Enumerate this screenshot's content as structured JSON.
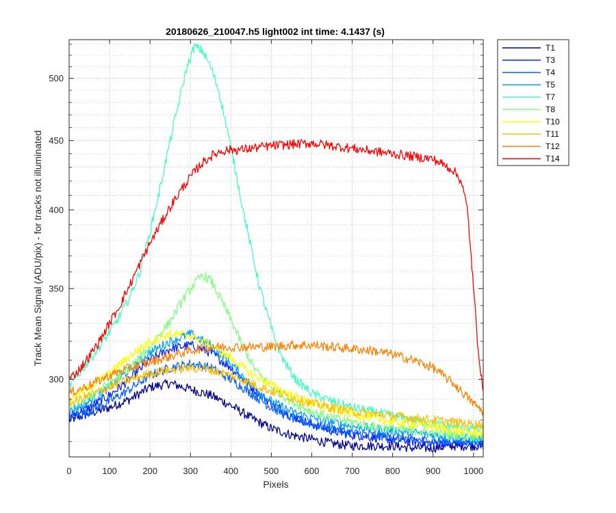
{
  "chart_data": {
    "type": "line",
    "title": "20180626_210047.h5  light002   int time: 4.1437 (s)",
    "xlabel": "Pixels",
    "ylabel": "Track Mean Signal (ADU/pix) - for tracks not illuminated",
    "xlim": [
      0,
      1024
    ],
    "ylim": [
      263,
      534
    ],
    "y_scale": "log",
    "x_ticks": [
      0,
      100,
      200,
      300,
      400,
      500,
      600,
      700,
      800,
      900,
      1000
    ],
    "y_ticks": [
      300,
      350,
      400,
      450,
      500
    ],
    "grid": "major and minor, dotted",
    "legend_position": "outside-right-top",
    "series": [
      {
        "name": "T1",
        "color": "#00008F",
        "x": [
          0,
          50,
          100,
          150,
          200,
          250,
          300,
          350,
          400,
          450,
          500,
          550,
          600,
          650,
          700,
          750,
          800,
          850,
          900,
          950,
          1000,
          1024
        ],
        "y": [
          280,
          283,
          286,
          290,
          296,
          298,
          295,
          292,
          287,
          281,
          276,
          273,
          271,
          269,
          268,
          268,
          268,
          267,
          267,
          268,
          268,
          268
        ]
      },
      {
        "name": "T3",
        "color": "#0020FF",
        "x": [
          0,
          50,
          100,
          150,
          200,
          250,
          300,
          350,
          400,
          450,
          500,
          550,
          600,
          650,
          700,
          750,
          800,
          850,
          900,
          950,
          1000,
          1024
        ],
        "y": [
          282,
          286,
          292,
          300,
          310,
          316,
          318,
          314,
          306,
          296,
          288,
          282,
          278,
          275,
          273,
          272,
          271,
          270,
          269,
          269,
          269,
          269
        ]
      },
      {
        "name": "T4",
        "color": "#0060FF",
        "x": [
          0,
          50,
          100,
          150,
          200,
          250,
          300,
          350,
          400,
          450,
          500,
          550,
          600,
          650,
          700,
          750,
          800,
          850,
          900,
          950,
          1000,
          1024
        ],
        "y": [
          281,
          284,
          289,
          295,
          302,
          306,
          308,
          306,
          300,
          293,
          286,
          281,
          278,
          276,
          274,
          273,
          272,
          271,
          270,
          270,
          270,
          270
        ]
      },
      {
        "name": "T5",
        "color": "#00A0FF",
        "x": [
          0,
          50,
          100,
          150,
          200,
          250,
          300,
          350,
          400,
          450,
          500,
          550,
          600,
          650,
          700,
          750,
          800,
          850,
          900,
          950,
          1000,
          1024
        ],
        "y": [
          284,
          289,
          296,
          305,
          314,
          320,
          324,
          318,
          308,
          297,
          289,
          284,
          281,
          279,
          277,
          276,
          275,
          274,
          273,
          272,
          271,
          271
        ]
      },
      {
        "name": "T7",
        "color": "#40FFBF",
        "x": [
          0,
          25,
          50,
          75,
          100,
          125,
          150,
          175,
          200,
          225,
          250,
          270,
          290,
          310,
          330,
          350,
          370,
          390,
          410,
          430,
          450,
          470,
          490,
          510,
          530,
          560,
          600,
          650,
          700,
          750,
          800,
          850,
          900,
          950,
          1000,
          1024
        ],
        "y": [
          296,
          303,
          310,
          317,
          325,
          334,
          345,
          360,
          385,
          415,
          450,
          478,
          508,
          528,
          524,
          510,
          490,
          460,
          430,
          400,
          375,
          352,
          335,
          320,
          310,
          300,
          293,
          289,
          286,
          284,
          282,
          280,
          278,
          277,
          276,
          275
        ]
      },
      {
        "name": "T8",
        "color": "#80FF80",
        "x": [
          0,
          50,
          100,
          150,
          200,
          250,
          280,
          310,
          330,
          350,
          370,
          400,
          430,
          460,
          500,
          550,
          600,
          650,
          700,
          750,
          800,
          850,
          900,
          950,
          1000,
          1024
        ],
        "y": [
          286,
          291,
          298,
          306,
          317,
          331,
          343,
          353,
          358,
          355,
          346,
          332,
          317,
          305,
          296,
          289,
          284,
          281,
          279,
          277,
          276,
          275,
          274,
          273,
          272,
          272
        ]
      },
      {
        "name": "T10",
        "color": "#FFFF00",
        "x": [
          0,
          50,
          100,
          150,
          200,
          250,
          300,
          350,
          400,
          450,
          500,
          550,
          600,
          650,
          700,
          750,
          800,
          850,
          900,
          950,
          1000,
          1024
        ],
        "y": [
          290,
          296,
          303,
          312,
          320,
          324,
          323,
          318,
          311,
          303,
          297,
          292,
          288,
          285,
          283,
          281,
          279,
          278,
          277,
          275,
          274,
          274
        ]
      },
      {
        "name": "T11",
        "color": "#FFBF00",
        "x": [
          0,
          50,
          100,
          150,
          200,
          250,
          300,
          350,
          400,
          450,
          500,
          550,
          600,
          650,
          700,
          750,
          800,
          850,
          900,
          950,
          1000,
          1024
        ],
        "y": [
          288,
          292,
          296,
          300,
          303,
          305,
          306,
          305,
          302,
          298,
          294,
          291,
          288,
          286,
          284,
          283,
          282,
          281,
          280,
          279,
          278,
          278
        ]
      },
      {
        "name": "T12",
        "color": "#FF8000",
        "x": [
          0,
          50,
          100,
          150,
          200,
          250,
          300,
          350,
          400,
          450,
          500,
          550,
          600,
          650,
          700,
          750,
          800,
          850,
          900,
          950,
          980,
          1000,
          1024
        ],
        "y": [
          293,
          297,
          302,
          306,
          309,
          312,
          315,
          317,
          317,
          317,
          317,
          318,
          318,
          317,
          316,
          315,
          313,
          310,
          306,
          298,
          292,
          288,
          284
        ]
      },
      {
        "name": "T14",
        "color": "#FF0000",
        "x": [
          0,
          25,
          50,
          75,
          100,
          125,
          150,
          175,
          200,
          225,
          250,
          275,
          300,
          325,
          350,
          375,
          400,
          425,
          450,
          500,
          550,
          600,
          650,
          700,
          750,
          800,
          850,
          900,
          925,
          950,
          970,
          985,
          1000,
          1010,
          1020,
          1024
        ],
        "y": [
          300,
          305,
          312,
          320,
          330,
          340,
          352,
          365,
          378,
          390,
          402,
          413,
          423,
          432,
          438,
          442,
          443,
          443,
          444,
          446,
          447,
          448,
          446,
          444,
          442,
          440,
          438,
          436,
          432,
          428,
          420,
          400,
          350,
          320,
          300,
          292
        ]
      }
    ]
  }
}
